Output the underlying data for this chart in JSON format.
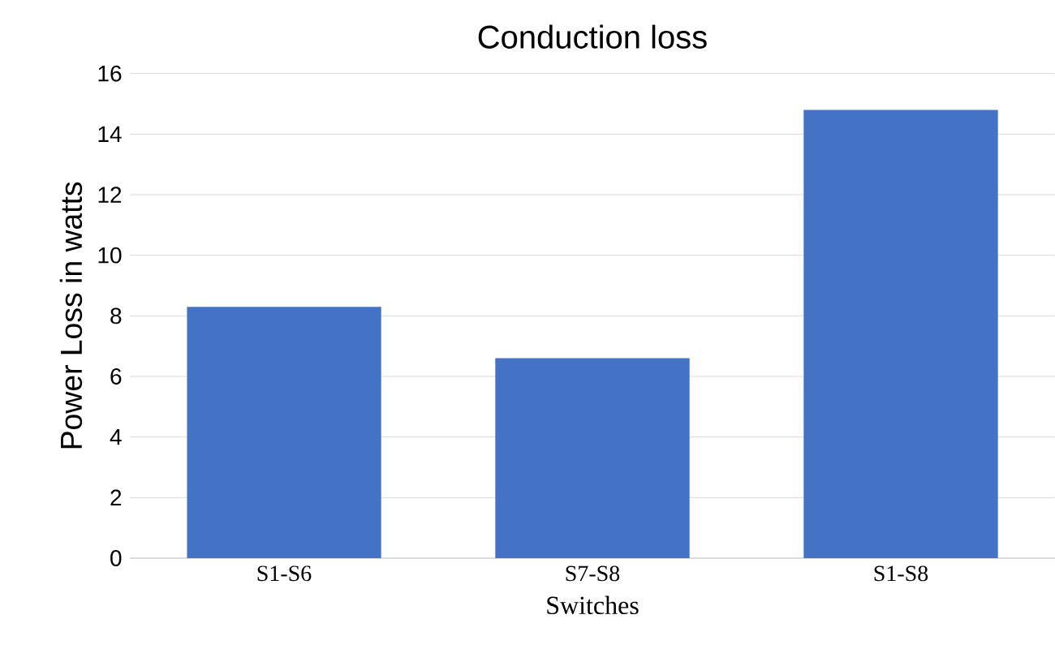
{
  "chart_data": {
    "type": "bar",
    "title": "Conduction loss",
    "xlabel": "Switches",
    "ylabel": "Power Loss in watts",
    "categories": [
      "S1-S6",
      "S7-S8",
      "S1-S8"
    ],
    "values": [
      8.3,
      6.6,
      14.8
    ],
    "color": "#4472c4",
    "ylim": [
      0,
      16
    ],
    "yticks": [
      0,
      2,
      4,
      6,
      8,
      10,
      12,
      14,
      16
    ],
    "grid": "y"
  }
}
